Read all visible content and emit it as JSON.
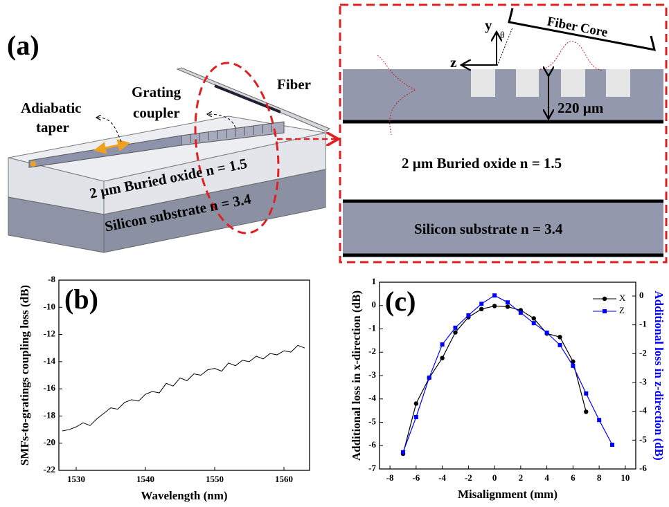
{
  "panel_a": {
    "label": "(a)",
    "diagram": {
      "fiber": "Fiber",
      "grating": [
        "Grating",
        "coupler"
      ],
      "taper": [
        "Adiabatic",
        "taper"
      ],
      "oxide": "2 µm Buried oxide n = 1.5",
      "substrate": "Silicon substrate n = 3.4"
    },
    "inset": {
      "y_axis": "y",
      "z_axis": "z",
      "angle": "θ",
      "fiber_core": "Fiber Core",
      "thickness": "220 µm",
      "oxide": "2 µm Buried oxide n = 1.5",
      "substrate": "Silicon substrate n = 3.4"
    }
  },
  "chart_data": [
    {
      "type": "line",
      "label": "(b)",
      "xlabel": "Wavelength (nm)",
      "ylabel": "SMFs-to-gratings coupling loss (dB)",
      "x": [
        1528,
        1529,
        1530,
        1531,
        1532,
        1533,
        1534,
        1535,
        1536,
        1537,
        1538,
        1539,
        1540,
        1541,
        1542,
        1543,
        1544,
        1545,
        1546,
        1547,
        1548,
        1549,
        1550,
        1551,
        1552,
        1553,
        1554,
        1555,
        1556,
        1557,
        1558,
        1559,
        1560,
        1561,
        1562,
        1563
      ],
      "series": [
        {
          "color": "#000000",
          "values": [
            -19.1,
            -19.0,
            -18.8,
            -18.5,
            -18.7,
            -18.2,
            -17.8,
            -17.4,
            -17.5,
            -17.0,
            -16.8,
            -16.9,
            -16.4,
            -16.2,
            -16.3,
            -15.6,
            -15.8,
            -15.2,
            -15.4,
            -14.9,
            -15.0,
            -14.6,
            -14.5,
            -14.7,
            -14.1,
            -14.3,
            -13.9,
            -14.0,
            -13.6,
            -13.8,
            -13.4,
            -13.5,
            -13.2,
            -13.3,
            -12.8,
            -13.0
          ]
        }
      ],
      "xlim": [
        1527.5,
        1563.7
      ],
      "xticks": [
        1530,
        1540,
        1550,
        1560
      ],
      "ylim": [
        -22,
        -8
      ],
      "yticks": [
        -22,
        -20,
        -18,
        -16,
        -14,
        -12,
        -10,
        -8
      ]
    },
    {
      "type": "line",
      "label": "(c)",
      "xlabel": "Misalignment (mm)",
      "ylabel": "Additional loss in x-direction (dB)",
      "y2label": "Additional loss in z-direction (dB)",
      "legend": "upper right",
      "series": [
        {
          "name": "X",
          "color": "#000000",
          "marker": "circle",
          "x": [
            -7,
            -6,
            -5,
            -4,
            -3,
            -2,
            -1,
            0,
            1,
            2,
            3,
            4,
            5,
            6,
            7
          ],
          "values": [
            -6.35,
            -4.2,
            -3.1,
            -2.25,
            -1.15,
            -0.5,
            -0.15,
            -0.02,
            -0.05,
            -0.2,
            -0.55,
            -1.2,
            -1.35,
            -2.4,
            -4.55
          ]
        },
        {
          "name": "Z",
          "color": "#0000ff",
          "marker": "square",
          "axis": "y2",
          "x": [
            -7,
            -6,
            -5,
            -4,
            -3,
            -2,
            -1,
            0,
            1,
            2,
            3,
            4,
            5,
            6,
            7,
            8,
            9
          ],
          "values": [
            -5.42,
            -4.2,
            -2.83,
            -1.68,
            -1.1,
            -0.67,
            -0.27,
            0.02,
            -0.22,
            -0.58,
            -0.94,
            -1.27,
            -1.7,
            -2.42,
            -3.38,
            -4.3,
            -5.16
          ]
        }
      ],
      "xlim": [
        -8.8,
        10.8
      ],
      "xticks": [
        -8,
        -6,
        -4,
        -2,
        0,
        2,
        4,
        6,
        8,
        10
      ],
      "ylim": [
        -7,
        1
      ],
      "yticks": [
        -7,
        -6,
        -5,
        -4,
        -3,
        -2,
        -1,
        0,
        1
      ],
      "y2lim": [
        -6,
        0.48
      ],
      "y2ticks": [
        -6,
        -5,
        -4,
        -3,
        -2,
        -1,
        0
      ]
    }
  ]
}
